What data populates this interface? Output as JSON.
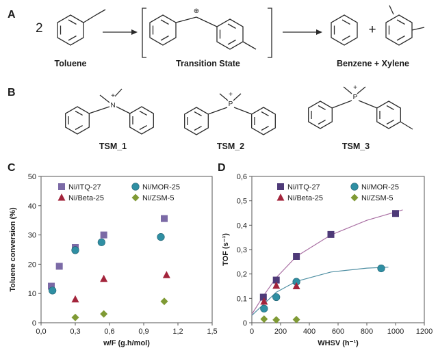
{
  "panels": {
    "A": {
      "label": "A",
      "coefficient": "2",
      "reactant": "Toluene",
      "intermediate": "Transition State",
      "products": "Benzene + Xylene",
      "plus": "+",
      "charge": "⊕"
    },
    "B": {
      "label": "B",
      "molecules": [
        "TSM_1",
        "TSM_2",
        "TSM_3"
      ],
      "heteroatoms": [
        "N",
        "P",
        "P"
      ],
      "charge": "+"
    },
    "C": {
      "label": "C"
    },
    "D": {
      "label": "D"
    }
  },
  "chart_data": [
    {
      "type": "scatter",
      "panel": "C",
      "xlabel": "w/F (g.h/mol)",
      "ylabel": "Toluene conversion (%)",
      "xlim": [
        0,
        1.5
      ],
      "ylim": [
        0,
        50
      ],
      "xticks": [
        "0,0",
        "0,3",
        "0,6",
        "0,9",
        "1,2",
        "1,5"
      ],
      "yticks": [
        "0",
        "10",
        "20",
        "30",
        "40",
        "50"
      ],
      "xtick_values": [
        0,
        0.3,
        0.6,
        0.9,
        1.2,
        1.5
      ],
      "ytick_values": [
        0,
        10,
        20,
        30,
        40,
        50
      ],
      "grid": false,
      "legend_position": "top",
      "series": [
        {
          "name": "Ni/ITQ-27",
          "marker": "square",
          "color": "#7b6aa6",
          "x": [
            0.09,
            0.16,
            0.3,
            0.55,
            1.08
          ],
          "y": [
            12.5,
            19.3,
            25.7,
            30.0,
            35.6
          ]
        },
        {
          "name": "Ni/MOR-25",
          "marker": "circle",
          "color": "#2f8fa3",
          "x": [
            0.1,
            0.3,
            0.53,
            1.05
          ],
          "y": [
            11.0,
            24.8,
            27.5,
            29.3
          ]
        },
        {
          "name": "Ni/Beta-25",
          "marker": "triangle",
          "color": "#a3243b",
          "x": [
            0.3,
            0.55,
            1.1
          ],
          "y": [
            8.0,
            15.0,
            16.3
          ]
        },
        {
          "name": "Ni/ZSM-5",
          "marker": "diamond",
          "color": "#7f9a34",
          "x": [
            0.3,
            0.55,
            1.08
          ],
          "y": [
            1.8,
            3.0,
            7.3
          ]
        }
      ]
    },
    {
      "type": "scatter",
      "panel": "D",
      "xlabel": "WHSV (h⁻¹)",
      "ylabel": "TOF (s⁻¹)",
      "xlim": [
        0,
        1200
      ],
      "ylim": [
        0,
        0.6
      ],
      "xticks": [
        "0",
        "200",
        "400",
        "600",
        "800",
        "1000",
        "1200"
      ],
      "yticks": [
        "0",
        "0,1",
        "0,2",
        "0,3",
        "0,4",
        "0,5",
        "0,6"
      ],
      "xtick_values": [
        0,
        200,
        400,
        600,
        800,
        1000,
        1200
      ],
      "ytick_values": [
        0,
        0.1,
        0.2,
        0.3,
        0.4,
        0.5,
        0.6
      ],
      "grid": false,
      "legend_position": "top",
      "series": [
        {
          "name": "Ni/ITQ-27",
          "marker": "square",
          "color": "#4e3a78",
          "x": [
            80,
            170,
            310,
            550,
            1000
          ],
          "y": [
            0.105,
            0.175,
            0.272,
            0.362,
            0.448
          ]
        },
        {
          "name": "Ni/MOR-25",
          "marker": "circle",
          "color": "#2f8fa3",
          "x": [
            85,
            170,
            310,
            900
          ],
          "y": [
            0.058,
            0.105,
            0.168,
            0.223
          ]
        },
        {
          "name": "Ni/Beta-25",
          "marker": "triangle",
          "color": "#a3243b",
          "x": [
            85,
            170,
            310
          ],
          "y": [
            0.087,
            0.152,
            0.15
          ]
        },
        {
          "name": "Ni/ZSM-5",
          "marker": "diamond",
          "color": "#7f9a34",
          "x": [
            85,
            170,
            310
          ],
          "y": [
            0.015,
            0.012,
            0.013
          ]
        }
      ],
      "fits": [
        {
          "series": "Ni/ITQ-27",
          "color": "#a96fa3",
          "x": [
            0,
            80,
            170,
            310,
            550,
            800,
            1050
          ],
          "y": [
            0.035,
            0.11,
            0.185,
            0.272,
            0.36,
            0.42,
            0.463
          ]
        },
        {
          "series": "Ni/MOR-25",
          "color": "#4f8fa3",
          "x": [
            0,
            80,
            170,
            310,
            550,
            800,
            950
          ],
          "y": [
            0.03,
            0.075,
            0.125,
            0.17,
            0.208,
            0.224,
            0.228
          ]
        }
      ]
    }
  ]
}
